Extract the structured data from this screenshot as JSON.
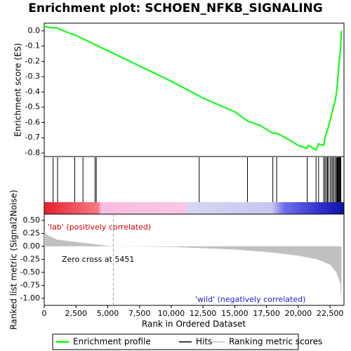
{
  "chart_data": [
    {
      "type": "line",
      "title": "Enrichment plot: SCHOEN_NFKB_SIGNALING",
      "ylabel": "Enrichment score (ES)",
      "xlim": [
        0,
        23600
      ],
      "ylim": [
        -0.823,
        0.05
      ],
      "yticks": [
        {
          "value": 0,
          "label": "0.0"
        },
        -0.1,
        -0.2,
        -0.3,
        -0.4,
        -0.5,
        -0.6,
        -0.7,
        -0.8
      ],
      "series": [
        {
          "name": "Enrichment profile",
          "color": "#00ff00",
          "x": [
            0,
            500,
            1000,
            1500,
            2500,
            3000,
            4000,
            5000,
            7500,
            10000,
            12500,
            15000,
            16000,
            17000,
            18000,
            18300,
            19000,
            20000,
            20700,
            20800,
            21200,
            21400,
            21600,
            22000,
            22100,
            22300,
            22500,
            22700,
            22900,
            23000,
            23100,
            23200,
            23300,
            23350,
            23400
          ],
          "values": [
            0.03,
            0.02,
            0.02,
            0.0,
            -0.03,
            -0.05,
            -0.09,
            -0.13,
            -0.23,
            -0.33,
            -0.44,
            -0.53,
            -0.59,
            -0.62,
            -0.67,
            -0.67,
            -0.7,
            -0.75,
            -0.77,
            -0.75,
            -0.77,
            -0.78,
            -0.74,
            -0.75,
            -0.7,
            -0.65,
            -0.59,
            -0.52,
            -0.46,
            -0.41,
            -0.33,
            -0.22,
            -0.15,
            -0.08,
            0.0
          ]
        }
      ]
    },
    {
      "type": "hits",
      "xlim": [
        0,
        23600
      ],
      "series": [
        {
          "name": "Hits",
          "color": "#000000",
          "x": [
            700,
            1050,
            2400,
            3050,
            4000,
            4100,
            12200,
            16000,
            18000,
            18300,
            20700,
            21400,
            21600,
            22000,
            22100,
            22200,
            22300,
            22350,
            22500,
            22600,
            22700,
            22800,
            22900,
            23000,
            23050,
            23100,
            23150,
            23200,
            23250,
            23300,
            23350
          ]
        }
      ]
    },
    {
      "type": "area",
      "xlabel": "Rank in Ordered Dataset",
      "ylabel": "Ranked list metric (Signal2Noise)",
      "xlim": [
        0,
        23600
      ],
      "ylim": [
        -1.135,
        0.62
      ],
      "xticks": [
        0,
        {
          "value": 2500,
          "label": "2,500"
        },
        {
          "value": 5000,
          "label": "5,000"
        },
        {
          "value": 7500,
          "label": "7,500"
        },
        {
          "value": 10000,
          "label": "10,000"
        },
        {
          "value": 12500,
          "label": "12,500"
        },
        {
          "value": 15000,
          "label": "15,000"
        },
        {
          "value": 17500,
          "label": "17,500"
        },
        {
          "value": 20000,
          "label": "20,000"
        },
        {
          "value": 22500,
          "label": "22,500"
        }
      ],
      "yticks": [
        {
          "value": 0.5,
          "label": "0.50"
        },
        {
          "value": 0.25,
          "label": "0.25"
        },
        {
          "value": 0,
          "label": "0.00"
        },
        {
          "value": -0.25,
          "label": "-0.25"
        },
        {
          "value": -0.5,
          "label": "-0.50"
        },
        {
          "value": -0.75,
          "label": "-0.75"
        },
        {
          "value": -1,
          "label": "-1.00"
        }
      ],
      "zero_cross": 5451,
      "annotations": [
        "'lab' (positively correlated)",
        "Zero cross at 5451",
        "'wild' (negatively correlated)"
      ],
      "series": [
        {
          "name": "Ranking metric scores",
          "color": "#c0c0c0",
          "x": [
            0,
            200,
            1000,
            3000,
            5000,
            5451,
            10000,
            15000,
            18000,
            20000,
            21500,
            22500,
            23000,
            23300,
            23400
          ],
          "values": [
            0.3,
            0.22,
            0.13,
            0.07,
            0.01,
            0,
            -0.01,
            -0.06,
            -0.12,
            -0.18,
            -0.25,
            -0.35,
            -0.5,
            -0.7,
            -1.05
          ]
        }
      ]
    }
  ]
}
